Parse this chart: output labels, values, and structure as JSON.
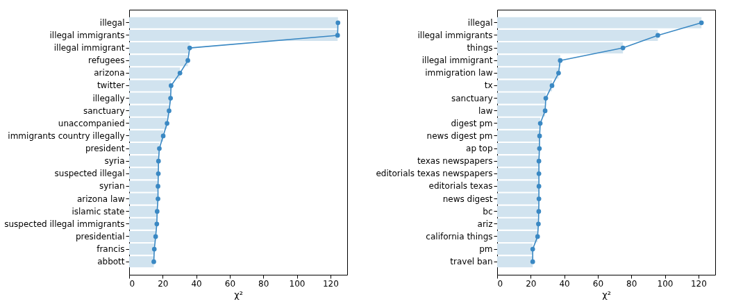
{
  "chart_data": [
    {
      "type": "bar",
      "orientation": "horizontal",
      "xlabel": "χ²",
      "xlim": [
        0,
        130
      ],
      "xticks": [
        0,
        20,
        40,
        60,
        80,
        100,
        120
      ],
      "grid": false,
      "marker": "circle",
      "categories": [
        "illegal",
        "illegal immigrants",
        "illegal immigrant",
        "refugees",
        "arizona",
        "twitter",
        "illegally",
        "sanctuary",
        "unaccompanied",
        "immigrants country illegally",
        "president",
        "syria",
        "suspected illegal",
        "syrian",
        "arizona law",
        "islamic state",
        "suspected illegal immigrants",
        "presidential",
        "francis",
        "abbott"
      ],
      "series": [
        {
          "color": "#d1e3ef",
          "values": [
            124.5,
            124.3,
            36.1,
            35,
            30.3,
            25,
            24.7,
            23.8,
            22.6,
            20.3,
            18,
            17.5,
            17.4,
            17.2,
            17.2,
            16.7,
            16.5,
            15.8,
            15,
            14.7
          ]
        },
        {
          "type": "line",
          "color": "#3a88c3",
          "values": [
            124.5,
            124.3,
            36.1,
            35,
            30.3,
            25,
            24.7,
            23.8,
            22.6,
            20.3,
            18,
            17.5,
            17.4,
            17.2,
            17.2,
            16.7,
            16.5,
            15.8,
            15,
            14.7
          ]
        }
      ]
    },
    {
      "type": "bar",
      "orientation": "horizontal",
      "xlabel": "χ²",
      "xlim": [
        0,
        130
      ],
      "xticks": [
        0,
        20,
        40,
        60,
        80,
        100,
        120
      ],
      "grid": false,
      "marker": "circle",
      "categories": [
        "illegal",
        "illegal immigrants",
        "things",
        "illegal immigrant",
        "immigration law",
        "tx",
        "sanctuary",
        "law",
        "digest pm",
        "news digest pm",
        "ap top",
        "texas newspapers",
        "editorials texas newspapers",
        "editorials texas",
        "news digest",
        "bc",
        "ariz",
        "california things",
        "pm",
        "travel ban"
      ],
      "series": [
        {
          "color": "#d1e3ef",
          "values": [
            121.8,
            95.8,
            75,
            37.6,
            36.6,
            32.7,
            29,
            28.6,
            25.7,
            25.3,
            25.2,
            24.9,
            24.9,
            24.9,
            24.9,
            24.8,
            24.6,
            24.1,
            21.2,
            21.2
          ]
        },
        {
          "type": "line",
          "color": "#3a88c3",
          "values": [
            121.8,
            95.8,
            75,
            37.6,
            36.6,
            32.7,
            29,
            28.6,
            25.7,
            25.3,
            25.2,
            24.9,
            24.9,
            24.9,
            24.9,
            24.8,
            24.6,
            24.1,
            21.2,
            21.2
          ]
        }
      ]
    }
  ]
}
